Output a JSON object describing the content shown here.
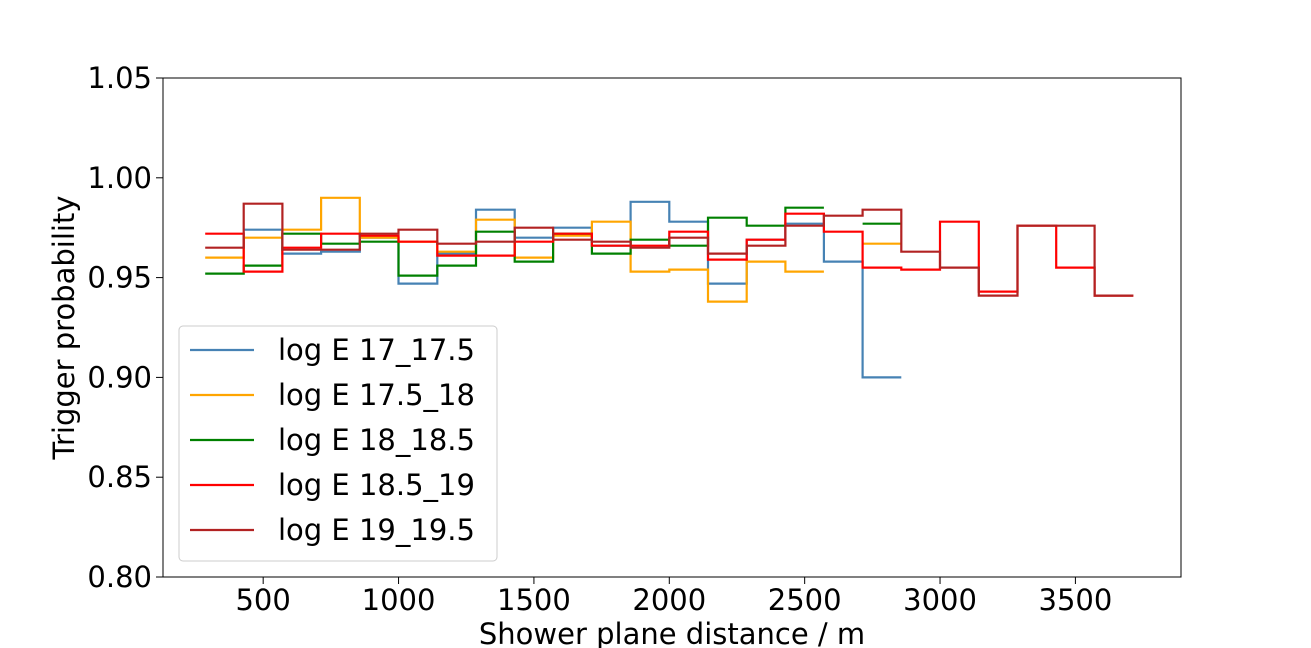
{
  "chart_data": {
    "type": "line",
    "drawstyle": "steps",
    "title": "",
    "xlabel": "Shower plane distance / m",
    "ylabel": "Trigger probability",
    "xlim": [
      130,
      3890
    ],
    "ylim": [
      0.8,
      1.05
    ],
    "xticks": [
      500,
      1000,
      1500,
      2000,
      2500,
      3000,
      3500
    ],
    "yticks": [
      0.8,
      0.85,
      0.9,
      0.95,
      1.0,
      1.05
    ],
    "xtick_labels": [
      "500",
      "1000",
      "1500",
      "2000",
      "2500",
      "3000",
      "3500"
    ],
    "ytick_labels": [
      "0.80",
      "0.85",
      "0.90",
      "0.95",
      "1.00",
      "1.05"
    ],
    "grid": false,
    "legend_position": "lower-left",
    "bin_edges": [
      286,
      428,
      571,
      714,
      857,
      1000,
      1143,
      1286,
      1429,
      1571,
      1714,
      1857,
      2000,
      2143,
      2286,
      2429,
      2571,
      2714,
      2857,
      3000,
      3143,
      3286,
      3429,
      3571,
      3714
    ],
    "series": [
      {
        "name": "log E 17_17.5",
        "color": "#4682b4",
        "values": [
          null,
          0.974,
          0.962,
          0.963,
          0.97,
          0.947,
          0.962,
          0.984,
          0.97,
          0.975,
          0.966,
          0.988,
          0.978,
          0.947,
          0.969,
          0.977,
          0.958,
          0.9,
          null,
          null,
          null,
          null,
          null,
          null
        ]
      },
      {
        "name": "log E 17.5_18",
        "color": "#ffa500",
        "values": [
          0.96,
          0.97,
          0.974,
          0.99,
          0.97,
          0.968,
          0.963,
          0.979,
          0.96,
          0.971,
          0.978,
          0.953,
          0.954,
          0.938,
          0.958,
          0.953,
          null,
          0.967,
          null,
          null,
          null,
          null,
          null,
          null
        ]
      },
      {
        "name": "log E 18_18.5",
        "color": "#008000",
        "values": [
          0.952,
          0.956,
          0.972,
          0.967,
          0.968,
          0.951,
          0.956,
          0.973,
          0.958,
          0.972,
          0.962,
          0.969,
          0.966,
          0.98,
          0.976,
          0.985,
          null,
          0.977,
          null,
          null,
          null,
          null,
          null,
          null
        ]
      },
      {
        "name": "log E 18.5_19",
        "color": "#ff0000",
        "values": [
          0.972,
          0.953,
          0.965,
          0.972,
          0.971,
          0.968,
          0.961,
          0.961,
          0.968,
          0.972,
          0.966,
          0.966,
          0.973,
          0.959,
          0.969,
          0.982,
          0.973,
          0.955,
          0.954,
          0.978,
          0.943,
          0.976,
          0.955,
          0.941
        ]
      },
      {
        "name": "log E 19_19.5",
        "color": "#b22222",
        "values": [
          0.965,
          0.987,
          0.964,
          0.964,
          0.972,
          0.974,
          0.967,
          0.968,
          0.975,
          0.969,
          0.968,
          0.965,
          0.97,
          0.962,
          0.966,
          0.976,
          0.981,
          0.984,
          0.963,
          0.955,
          0.941,
          0.976,
          0.976,
          0.941
        ]
      }
    ]
  }
}
